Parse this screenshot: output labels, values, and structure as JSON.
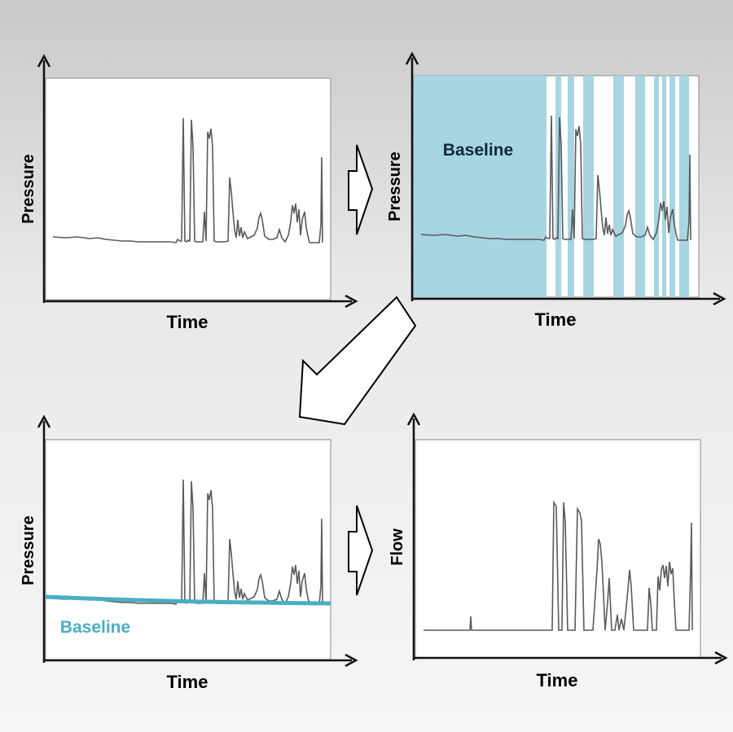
{
  "panels": {
    "raw": {
      "xlabel": "Time",
      "ylabel": "Pressure"
    },
    "segmented": {
      "xlabel": "Time",
      "ylabel": "Pressure",
      "region_label": "Baseline"
    },
    "baseline_fit": {
      "xlabel": "Time",
      "ylabel": "Pressure",
      "curve_label": "Baseline"
    },
    "flow": {
      "xlabel": "Time",
      "ylabel": "Flow"
    }
  },
  "colors": {
    "signal": "#5a5a5a",
    "baseline": "#4aaec4",
    "baseline_fill": "#a8d5e2",
    "axis": "#111111"
  },
  "arrows": [
    {
      "name": "arrow-raw-to-segmented",
      "direction": "right"
    },
    {
      "name": "arrow-segmented-to-baseline-fit",
      "direction": "down-left"
    },
    {
      "name": "arrow-baseline-fit-to-flow",
      "direction": "right"
    }
  ]
}
